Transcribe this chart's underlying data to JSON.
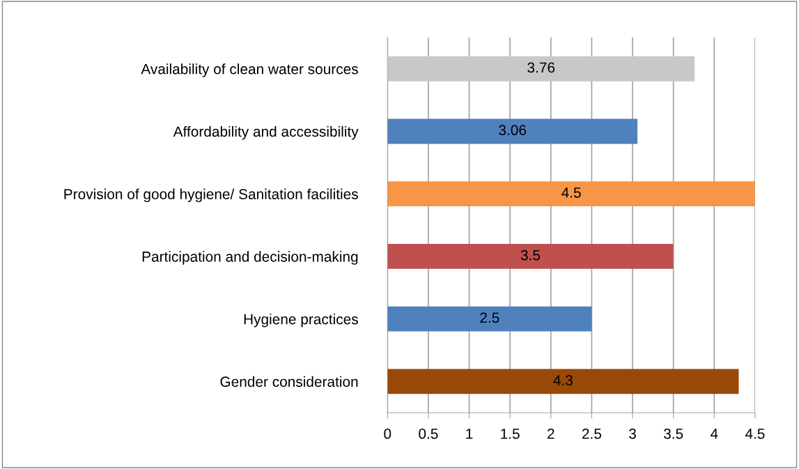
{
  "chart_data": {
    "type": "bar",
    "orientation": "horizontal",
    "categories": [
      "Availability of clean water sources",
      "Affordability and accessibility",
      "Provision of good hygiene/ Sanitation facilities",
      "Participation and decision-making",
      "Hygiene practices",
      "Gender consideration"
    ],
    "values": [
      3.76,
      3.06,
      4.5,
      3.5,
      2.5,
      4.3
    ],
    "colors": [
      "#c8c8c8",
      "#4f81bd",
      "#f79646",
      "#c0504d",
      "#4f81bd",
      "#984807"
    ],
    "xlim": [
      0,
      4.5
    ],
    "xticks": [
      0,
      0.5,
      1,
      1.5,
      2,
      2.5,
      3,
      3.5,
      4,
      4.5
    ],
    "grid": "x",
    "data_labels": true
  }
}
